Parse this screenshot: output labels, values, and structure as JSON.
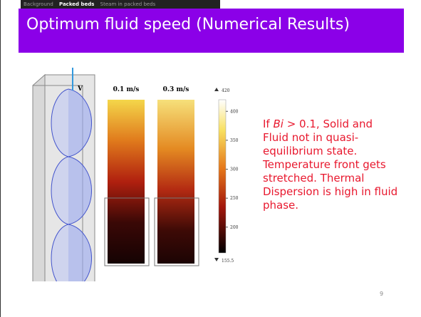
{
  "header": {
    "nav": [
      "Background",
      "Packed beds",
      "Steam in packed beds"
    ],
    "title": "Optimum fluid speed (Numerical Results)"
  },
  "figure": {
    "velocity_label": "V",
    "columns": [
      "0.1 m/s",
      "0.3 m/s"
    ],
    "colorbar": {
      "max": 420,
      "min": 155.5,
      "ticks": [
        400,
        350,
        300,
        250,
        200
      ]
    }
  },
  "body": {
    "parts": [
      "If ",
      "Bi",
      " > 0.1, Solid and Fluid not in quasi-equilibrium state. Temperature front gets stretched. Thermal Dispersion is high in fluid phase."
    ]
  },
  "footer": {
    "page_number": "9"
  }
}
